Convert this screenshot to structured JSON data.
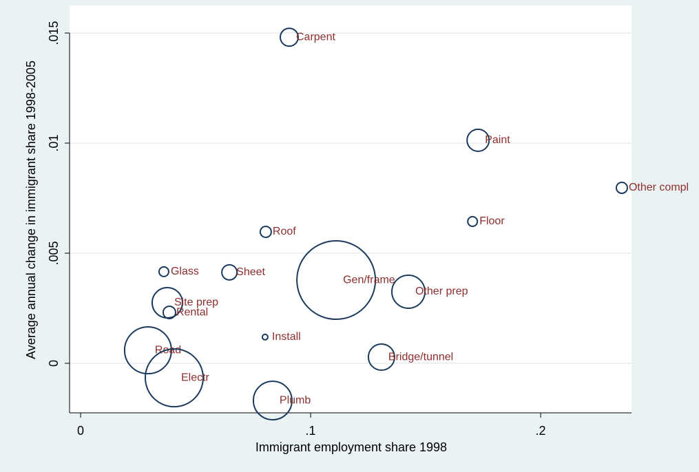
{
  "chart_data": {
    "type": "scatter",
    "x_label": "Immigrant employment share 1998",
    "y_label": "Average annual change in immigrant share 1998-2005",
    "categories": [
      "Carpent",
      "Paint",
      "Other compl",
      "Floor",
      "Roof",
      "Glass",
      "Sheet",
      "Gen/frame",
      "Other prep",
      "Site prep",
      "Rental",
      "Install",
      "Road",
      "Bridge/tunnel",
      "Electr",
      "Plumb"
    ],
    "x": [
      0.0907,
      0.1728,
      0.2353,
      0.1704,
      0.0805,
      0.0362,
      0.0647,
      0.1111,
      0.1425,
      0.0377,
      0.0386,
      0.0802,
      0.0293,
      0.1308,
      0.0407,
      0.0835
    ],
    "y": [
      0.01481,
      0.01013,
      0.00797,
      0.00644,
      0.00597,
      0.00416,
      0.00413,
      0.00378,
      0.00325,
      0.00275,
      0.00231,
      0.00119,
      0.00059,
      0.00028,
      -0.00066,
      -0.00169
    ],
    "sizes": [
      169,
      256,
      64,
      49,
      64,
      49,
      121,
      3249,
      576,
      484,
      81,
      16,
      1156,
      361,
      1764,
      784
    ],
    "color": "#1a3a5c",
    "label_color": "#8b2e2e",
    "xlim": [
      -0.0048,
      0.2395
    ],
    "ylim": [
      -0.00225,
      0.01625
    ],
    "xticks": [
      0,
      {
        "value": 0.1,
        "label": ".1"
      },
      {
        "value": 0.2,
        "label": ".2"
      }
    ],
    "yticks": [
      0,
      {
        "value": 0.005,
        "label": ".005"
      },
      {
        "value": 0.01,
        "label": ".01"
      },
      {
        "value": 0.015,
        "label": ".015"
      }
    ],
    "grid": true
  }
}
